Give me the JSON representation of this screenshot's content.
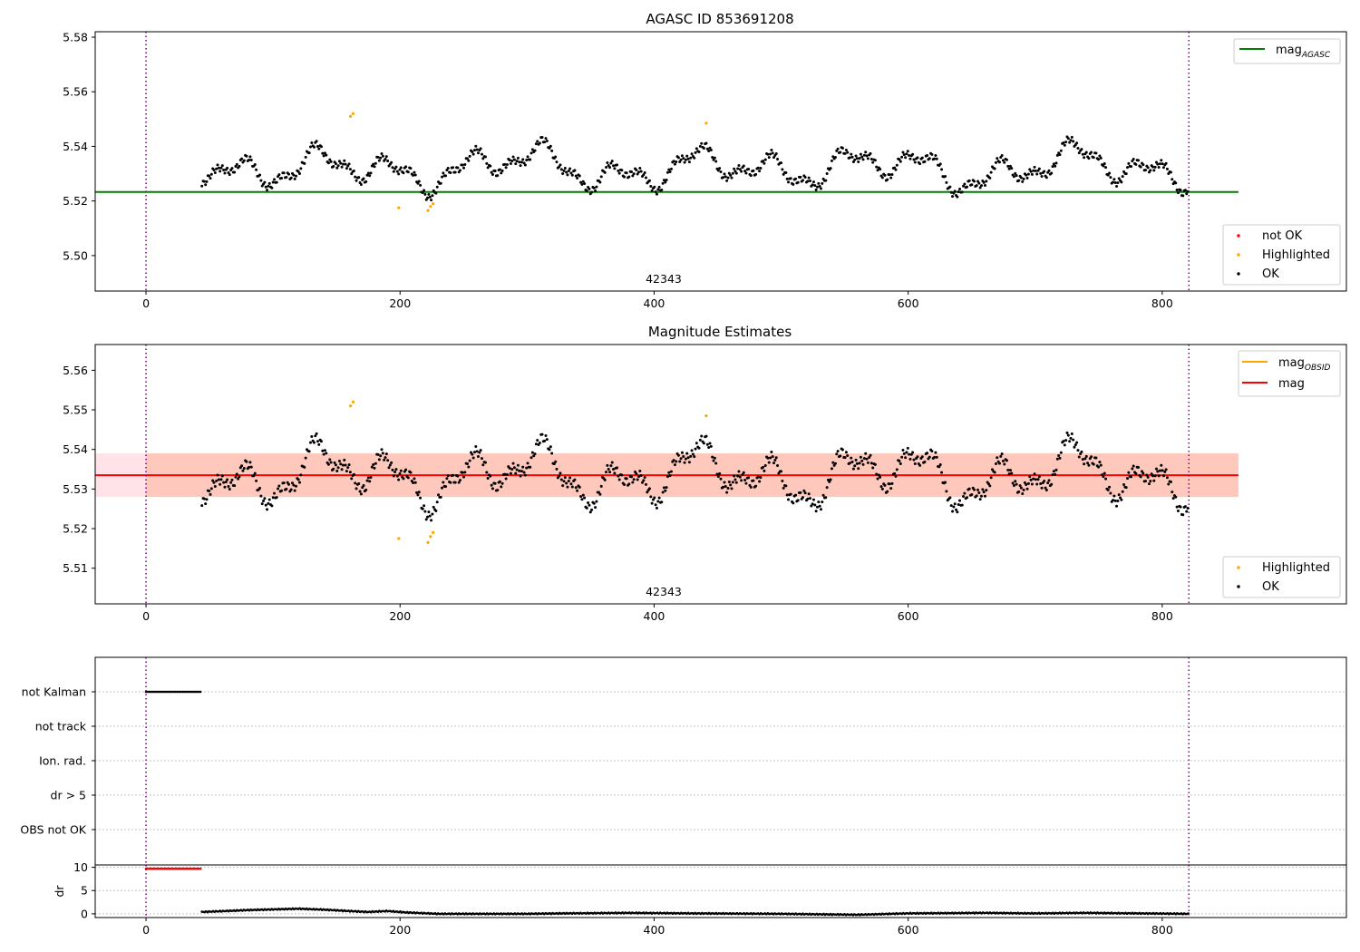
{
  "chart_data": [
    {
      "type": "scatter",
      "title": "AGASC ID 853691208",
      "annotation": "42343",
      "xlim": [
        -40,
        945
      ],
      "ylim": [
        5.487,
        5.582
      ],
      "xticks": [
        0,
        200,
        400,
        600,
        800
      ],
      "yticks": [
        5.5,
        5.52,
        5.54,
        5.56,
        5.58
      ],
      "ytick_labels": [
        "5.50",
        "5.52",
        "5.54",
        "5.56",
        "5.58"
      ],
      "vlines": [
        0,
        821
      ],
      "hline": {
        "label": "mag_AGASC",
        "label_main": "mag",
        "label_sub": "AGASC",
        "value": 5.5233,
        "x": [
          -40,
          860
        ],
        "color": "#008000"
      },
      "legend_lines": [
        {
          "label": "mag",
          "sub": "AGASC",
          "color": "#008000"
        }
      ],
      "legend_markers": [
        {
          "label": "not OK",
          "color": "#ff0000"
        },
        {
          "label": "Highlighted",
          "color": "#ffa500"
        },
        {
          "label": "OK",
          "color": "#000000"
        }
      ],
      "highlighted": [
        [
          161,
          5.551
        ],
        [
          163,
          5.552
        ],
        [
          199,
          5.5175
        ],
        [
          222,
          5.5165
        ],
        [
          224,
          5.518
        ],
        [
          226,
          5.519
        ],
        [
          441,
          5.5485
        ]
      ]
    },
    {
      "type": "scatter",
      "title": "Magnitude Estimates",
      "annotation": "42343",
      "xlim": [
        -40,
        945
      ],
      "ylim": [
        5.501,
        5.5665
      ],
      "xticks": [
        0,
        200,
        400,
        600,
        800
      ],
      "yticks": [
        5.51,
        5.52,
        5.53,
        5.54,
        5.55,
        5.56
      ],
      "ytick_labels": [
        "5.51",
        "5.52",
        "5.53",
        "5.54",
        "5.55",
        "5.56"
      ],
      "vlines": [
        0,
        821
      ],
      "mag_line": {
        "label": "mag",
        "value": 5.5335,
        "x": [
          -40,
          860
        ],
        "color": "#ff0000"
      },
      "bands": [
        {
          "y0": 5.528,
          "y1": 5.539,
          "x": [
            -40,
            860
          ],
          "color": "#ffc0cb"
        },
        {
          "y0": 5.528,
          "y1": 5.539,
          "x": [
            0,
            860
          ],
          "color": "#ffa07a"
        }
      ],
      "legend_lines": [
        {
          "label": "mag",
          "sub": "OBSID",
          "color": "#ffa500"
        },
        {
          "label": "mag",
          "sub": "",
          "color": "#ff0000"
        }
      ],
      "legend_markers": [
        {
          "label": "Highlighted",
          "color": "#ffa500"
        },
        {
          "label": "OK",
          "color": "#000000"
        }
      ],
      "highlighted": [
        [
          161,
          5.551
        ],
        [
          163,
          5.552
        ],
        [
          199,
          5.5175
        ],
        [
          222,
          5.5165
        ],
        [
          224,
          5.518
        ],
        [
          226,
          5.519
        ],
        [
          441,
          5.5485
        ]
      ]
    },
    {
      "type": "scatter",
      "title": "",
      "xlim": [
        -40,
        945
      ],
      "xticks": [
        0,
        200,
        400,
        600,
        800
      ],
      "vlines": [
        0,
        821
      ],
      "flag_rows": [
        "not Kalman",
        "not track",
        "Ion. rad.",
        "dr > 5",
        "OBS not OK"
      ],
      "flag_segments": [
        {
          "row": "not Kalman",
          "x0": 0,
          "x1": 43
        }
      ]
    },
    {
      "type": "scatter",
      "ylabel": "dr",
      "xlim": [
        -40,
        945
      ],
      "ylim": [
        -0.8,
        10.5
      ],
      "xticks": [
        0,
        200,
        400,
        600,
        800
      ],
      "yticks": [
        0,
        5,
        10
      ],
      "ytick_labels": [
        "0",
        "5",
        "10"
      ],
      "vlines": [
        0,
        821
      ],
      "dr_not_ok": {
        "x0": 0,
        "x1": 43,
        "value": 9.7
      },
      "dr_profile": [
        [
          44,
          0.4
        ],
        [
          80,
          0.8
        ],
        [
          120,
          1.1
        ],
        [
          140,
          0.9
        ],
        [
          160,
          0.6
        ],
        [
          175,
          0.4
        ],
        [
          190,
          0.6
        ],
        [
          205,
          0.3
        ],
        [
          230,
          0.0
        ],
        [
          300,
          0.0
        ],
        [
          330,
          0.1
        ],
        [
          380,
          0.2
        ],
        [
          430,
          0.1
        ],
        [
          500,
          0.0
        ],
        [
          560,
          -0.2
        ],
        [
          600,
          0.1
        ],
        [
          660,
          0.2
        ],
        [
          700,
          0.1
        ],
        [
          740,
          0.2
        ],
        [
          821,
          0.0
        ]
      ]
    }
  ]
}
